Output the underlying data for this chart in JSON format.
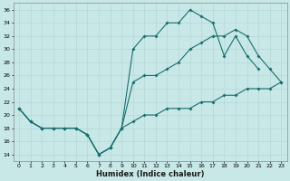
{
  "xlabel": "Humidex (Indice chaleur)",
  "bg_color": "#c8e8e8",
  "line_color": "#1a6e6e",
  "xlim": [
    -0.5,
    23.5
  ],
  "ylim": [
    13,
    37
  ],
  "yticks": [
    14,
    16,
    18,
    20,
    22,
    24,
    26,
    28,
    30,
    32,
    34,
    36
  ],
  "xticks": [
    0,
    1,
    2,
    3,
    4,
    5,
    6,
    7,
    8,
    9,
    10,
    11,
    12,
    13,
    14,
    15,
    16,
    17,
    18,
    19,
    20,
    21,
    22,
    23
  ],
  "line1_x": [
    0,
    1,
    2,
    3,
    4,
    5,
    6,
    7,
    8,
    9,
    10,
    11,
    12,
    13,
    14,
    15,
    16,
    17,
    18,
    19,
    20,
    21
  ],
  "line1_y": [
    21,
    19,
    18,
    18,
    18,
    18,
    17,
    14,
    15,
    18,
    30,
    32,
    32,
    34,
    34,
    36,
    35,
    34,
    29,
    32,
    29,
    27
  ],
  "line2_x": [
    0,
    1,
    2,
    3,
    4,
    5,
    6,
    7,
    8,
    9,
    10,
    11,
    12,
    13,
    14,
    15,
    16,
    17,
    18,
    19,
    20,
    21,
    22,
    23
  ],
  "line2_y": [
    21,
    19,
    18,
    18,
    18,
    18,
    17,
    14,
    15,
    18,
    25,
    26,
    26,
    27,
    28,
    30,
    31,
    32,
    32,
    33,
    32,
    29,
    27,
    25
  ],
  "line3_x": [
    0,
    1,
    2,
    3,
    4,
    5,
    6,
    7,
    8,
    9,
    10,
    11,
    12,
    13,
    14,
    15,
    16,
    17,
    18,
    19,
    20,
    21,
    22,
    23
  ],
  "line3_y": [
    21,
    19,
    18,
    18,
    18,
    18,
    17,
    14,
    15,
    18,
    19,
    20,
    20,
    21,
    21,
    21,
    22,
    22,
    23,
    23,
    24,
    24,
    24,
    25
  ]
}
